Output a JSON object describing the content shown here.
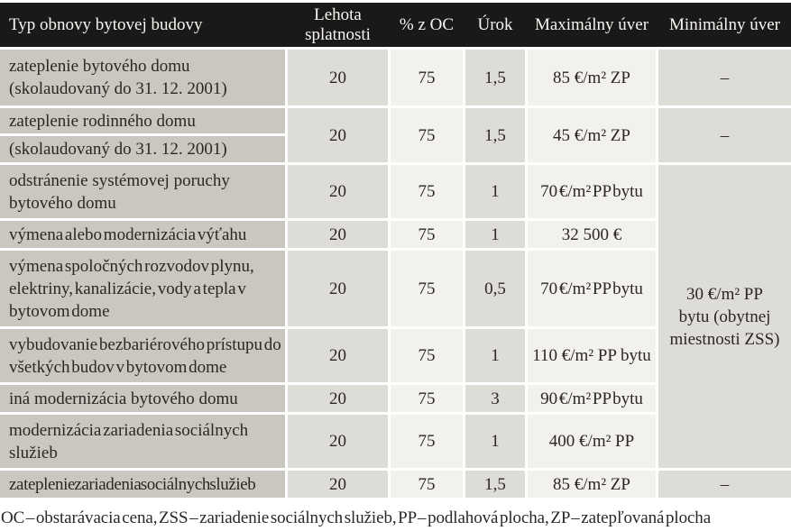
{
  "header": {
    "type": "Typ obnovy bytovej budovy",
    "maturity": "Lehota splatnosti",
    "pct": "% z OC",
    "interest": "Úrok",
    "max": "Maximálny úver",
    "min": "Minimálny úver"
  },
  "rows": [
    {
      "type": "zateplenie bytového domu (skolaudovaný do 31. 12. 2001)",
      "maturity": "20",
      "pct": "75",
      "interest": "1,5",
      "max": "85 €/m² ZP",
      "min": "–"
    },
    {
      "type_line1": "zateplenie rodinného domu",
      "type_line2": "(skolaudovaný do 31. 12. 2001)",
      "maturity": "20",
      "pct": "75",
      "interest": "1,5",
      "max": "45 €/m² ZP",
      "min": "–"
    },
    {
      "type": "odstránenie systémovej poruchy bytového domu",
      "maturity": "20",
      "pct": "75",
      "interest": "1",
      "max": "70 €/m² PP bytu"
    },
    {
      "type": "výmena alebo modernizácia výťahu",
      "maturity": "20",
      "pct": "75",
      "interest": "1",
      "max": "32 500 €"
    },
    {
      "type": "výmena spoločných rozvodov plynu, elektriny, kanalizácie, vody a tepla v bytovom dome",
      "maturity": "20",
      "pct": "75",
      "interest": "0,5",
      "max": "70 €/m² PP bytu"
    },
    {
      "type": "vybudovanie bezbariérového prístupu do všetkých budov v bytovom dome",
      "maturity": "20",
      "pct": "75",
      "interest": "1",
      "max": "110 €/m² PP bytu"
    },
    {
      "type": "iná modernizácia bytového domu",
      "maturity": "20",
      "pct": "75",
      "interest": "3",
      "max": "90 €/m² PP bytu"
    },
    {
      "type": "modernizácia zariadenia sociálnych služieb",
      "maturity": "20",
      "pct": "75",
      "interest": "1",
      "max": "400 €/m² PP"
    },
    {
      "type": "zateplenie zariadenia sociálnych služieb",
      "maturity": "20",
      "pct": "75",
      "interest": "1,5",
      "max": "85 €/m² ZP",
      "min": "–"
    }
  ],
  "merged_min": {
    "text": "30 €/m² PP bytu (obytnej miestnosti ZSS)",
    "lines": [
      "30 €/m² PP",
      "bytu (obytnej",
      "miestnosti ZSS)"
    ]
  },
  "footnote": "OC – obstarávacia cena, ZSS – zariadenie sociálnych služieb, PP – podlahová plocha, ZP – zatepľovaná plocha",
  "colors": {
    "header_bg": "#1b1917",
    "header_text": "#f7f6f4",
    "type_column_bg": "#cac7c0",
    "shaded_column_bg": "#dedcd6",
    "light_column_bg": "#f2f1ee",
    "body_text": "#2a2724",
    "grid_gap": "#ffffff"
  }
}
